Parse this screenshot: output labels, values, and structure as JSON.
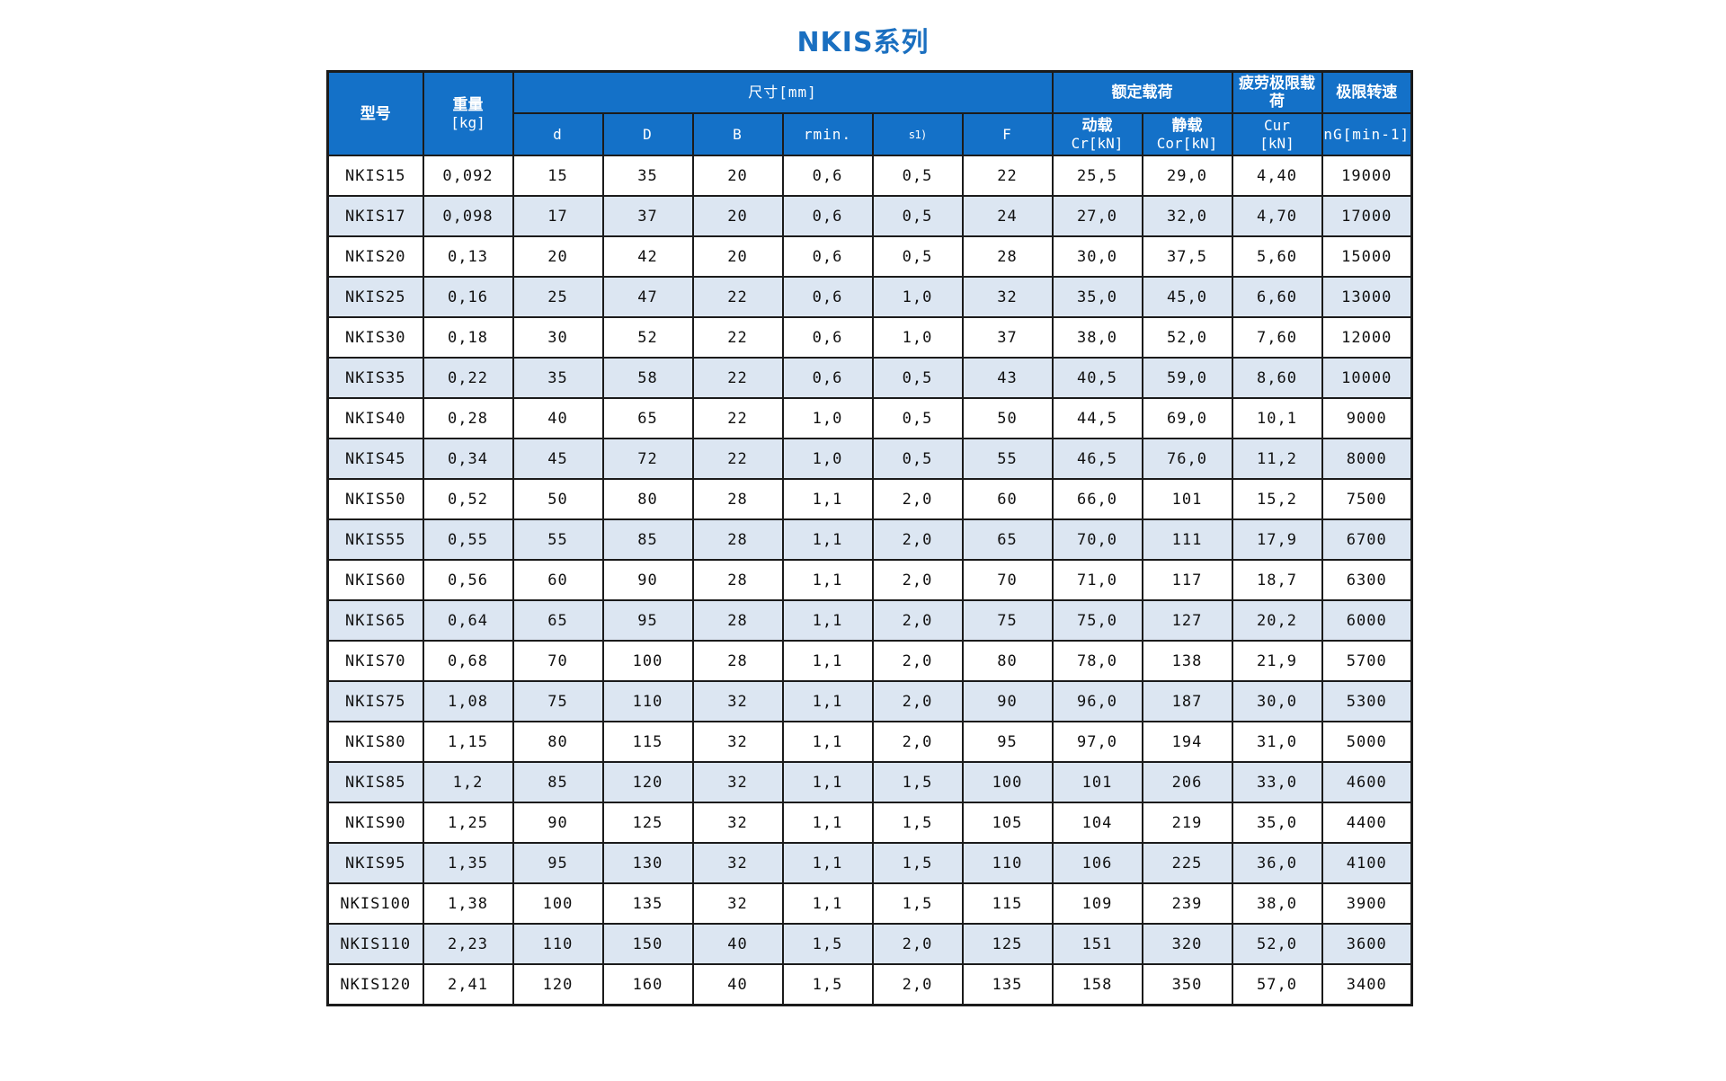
{
  "title": "NKIS系列",
  "header": {
    "model": "型号",
    "weight": [
      "重量",
      "[kg]"
    ],
    "dimensions": "尺寸[mm]",
    "dim_cols": [
      "d",
      "D",
      "B",
      "rmin.",
      "s1)",
      "F"
    ],
    "rated_load": "额定载荷",
    "dynamic": [
      "动载",
      "Cr[kN]"
    ],
    "static": [
      "静载",
      "Cor[kN]"
    ],
    "fatigue": "疲劳极限载荷",
    "fatigue_unit": [
      "Cur",
      "[kN]"
    ],
    "speed": "极限转速",
    "speed_unit": "nG[min-1]"
  },
  "rows": [
    [
      "NKIS15",
      "0,092",
      "15",
      "35",
      "20",
      "0,6",
      "0,5",
      "22",
      "25,5",
      "29,0",
      "4,40",
      "19000"
    ],
    [
      "NKIS17",
      "0,098",
      "17",
      "37",
      "20",
      "0,6",
      "0,5",
      "24",
      "27,0",
      "32,0",
      "4,70",
      "17000"
    ],
    [
      "NKIS20",
      "0,13",
      "20",
      "42",
      "20",
      "0,6",
      "0,5",
      "28",
      "30,0",
      "37,5",
      "5,60",
      "15000"
    ],
    [
      "NKIS25",
      "0,16",
      "25",
      "47",
      "22",
      "0,6",
      "1,0",
      "32",
      "35,0",
      "45,0",
      "6,60",
      "13000"
    ],
    [
      "NKIS30",
      "0,18",
      "30",
      "52",
      "22",
      "0,6",
      "1,0",
      "37",
      "38,0",
      "52,0",
      "7,60",
      "12000"
    ],
    [
      "NKIS35",
      "0,22",
      "35",
      "58",
      "22",
      "0,6",
      "0,5",
      "43",
      "40,5",
      "59,0",
      "8,60",
      "10000"
    ],
    [
      "NKIS40",
      "0,28",
      "40",
      "65",
      "22",
      "1,0",
      "0,5",
      "50",
      "44,5",
      "69,0",
      "10,1",
      "9000"
    ],
    [
      "NKIS45",
      "0,34",
      "45",
      "72",
      "22",
      "1,0",
      "0,5",
      "55",
      "46,5",
      "76,0",
      "11,2",
      "8000"
    ],
    [
      "NKIS50",
      "0,52",
      "50",
      "80",
      "28",
      "1,1",
      "2,0",
      "60",
      "66,0",
      "101",
      "15,2",
      "7500"
    ],
    [
      "NKIS55",
      "0,55",
      "55",
      "85",
      "28",
      "1,1",
      "2,0",
      "65",
      "70,0",
      "111",
      "17,9",
      "6700"
    ],
    [
      "NKIS60",
      "0,56",
      "60",
      "90",
      "28",
      "1,1",
      "2,0",
      "70",
      "71,0",
      "117",
      "18,7",
      "6300"
    ],
    [
      "NKIS65",
      "0,64",
      "65",
      "95",
      "28",
      "1,1",
      "2,0",
      "75",
      "75,0",
      "127",
      "20,2",
      "6000"
    ],
    [
      "NKIS70",
      "0,68",
      "70",
      "100",
      "28",
      "1,1",
      "2,0",
      "80",
      "78,0",
      "138",
      "21,9",
      "5700"
    ],
    [
      "NKIS75",
      "1,08",
      "75",
      "110",
      "32",
      "1,1",
      "2,0",
      "90",
      "96,0",
      "187",
      "30,0",
      "5300"
    ],
    [
      "NKIS80",
      "1,15",
      "80",
      "115",
      "32",
      "1,1",
      "2,0",
      "95",
      "97,0",
      "194",
      "31,0",
      "5000"
    ],
    [
      "NKIS85",
      "1,2",
      "85",
      "120",
      "32",
      "1,1",
      "1,5",
      "100",
      "101",
      "206",
      "33,0",
      "4600"
    ],
    [
      "NKIS90",
      "1,25",
      "90",
      "125",
      "32",
      "1,1",
      "1,5",
      "105",
      "104",
      "219",
      "35,0",
      "4400"
    ],
    [
      "NKIS95",
      "1,35",
      "95",
      "130",
      "32",
      "1,1",
      "1,5",
      "110",
      "106",
      "225",
      "36,0",
      "4100"
    ],
    [
      "NKIS100",
      "1,38",
      "100",
      "135",
      "32",
      "1,1",
      "1,5",
      "115",
      "109",
      "239",
      "38,0",
      "3900"
    ],
    [
      "NKIS110",
      "2,23",
      "110",
      "150",
      "40",
      "1,5",
      "2,0",
      "125",
      "151",
      "320",
      "52,0",
      "3600"
    ],
    [
      "NKIS120",
      "2,41",
      "120",
      "160",
      "40",
      "1,5",
      "2,0",
      "135",
      "158",
      "350",
      "57,0",
      "3400"
    ]
  ]
}
